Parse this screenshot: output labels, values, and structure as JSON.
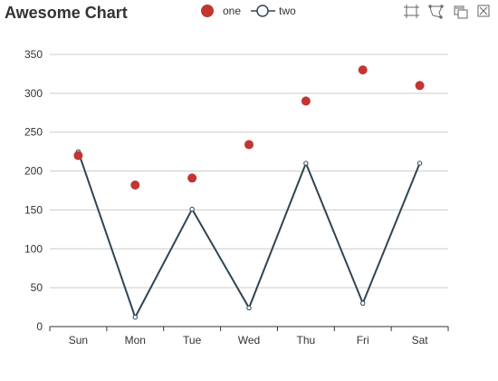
{
  "toolbox": {
    "icons": [
      "zoom-select-icon",
      "lasso-select-icon",
      "data-view-icon",
      "restore-icon"
    ]
  },
  "colors": {
    "series_one": "#c23531",
    "series_two": "#2f4554",
    "axis": "#333333",
    "grid": "#cccccc",
    "title": "#333333",
    "legend_text": "#333333"
  },
  "chart_data": {
    "type": "line",
    "title": "Awesome Chart",
    "xlabel": "",
    "ylabel": "",
    "categories": [
      "Sun",
      "Mon",
      "Tue",
      "Wed",
      "Thu",
      "Fri",
      "Sat"
    ],
    "ylim": [
      0,
      350
    ],
    "yticks": [
      0,
      50,
      100,
      150,
      200,
      250,
      300,
      350
    ],
    "grid": true,
    "legend_position": "top-center",
    "series": [
      {
        "name": "one",
        "type": "scatter",
        "values": [
          220,
          182,
          191,
          234,
          290,
          330,
          310
        ]
      },
      {
        "name": "two",
        "type": "line",
        "values": [
          225,
          12,
          151,
          24,
          210,
          30,
          210
        ]
      }
    ]
  }
}
